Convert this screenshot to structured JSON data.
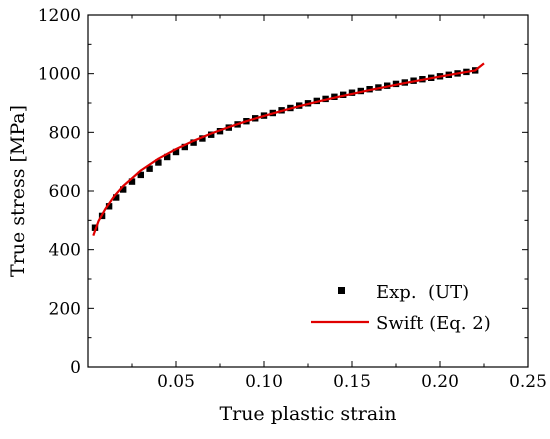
{
  "chart_data": {
    "type": "scatter",
    "title": "",
    "xlabel": "True plastic strain",
    "ylabel": "True stress [MPa]",
    "xlim": [
      0.0,
      0.25
    ],
    "ylim": [
      0,
      1200
    ],
    "x_ticks": [
      0.05,
      0.1,
      0.15,
      0.2,
      0.25
    ],
    "x_tick_labels": [
      "0.05",
      "0.10",
      "0.15",
      "0.20",
      "0.25"
    ],
    "y_ticks": [
      0,
      200,
      400,
      600,
      800,
      1000,
      1200
    ],
    "y_tick_labels": [
      "0",
      "200",
      "400",
      "600",
      "800",
      "1000",
      "1200"
    ],
    "grid": false,
    "legend_position": "bottom-right",
    "series": [
      {
        "name": "Exp.  (UT)",
        "kind": "markers",
        "color": "#000000",
        "x": [
          0.004,
          0.008,
          0.012,
          0.016,
          0.02,
          0.025,
          0.03,
          0.035,
          0.04,
          0.045,
          0.05,
          0.055,
          0.06,
          0.065,
          0.07,
          0.075,
          0.08,
          0.085,
          0.09,
          0.095,
          0.1,
          0.105,
          0.11,
          0.115,
          0.12,
          0.125,
          0.13,
          0.135,
          0.14,
          0.145,
          0.15,
          0.155,
          0.16,
          0.165,
          0.17,
          0.175,
          0.18,
          0.185,
          0.19,
          0.195,
          0.2,
          0.205,
          0.21,
          0.215,
          0.22
        ],
        "y": [
          475,
          515,
          548,
          578,
          605,
          632,
          655,
          676,
          697,
          716,
          733,
          750,
          765,
          779,
          792,
          804,
          816,
          827,
          838,
          848,
          857,
          866,
          875,
          883,
          891,
          899,
          907,
          914,
          921,
          928,
          935,
          941,
          947,
          953,
          959,
          965,
          970,
          976,
          981,
          986,
          991,
          996,
          1001,
          1006,
          1011
        ]
      },
      {
        "name": "Swift (Eq. 2)",
        "kind": "line",
        "color": "#e00000",
        "x": [
          0.003,
          0.006,
          0.01,
          0.015,
          0.02,
          0.03,
          0.04,
          0.05,
          0.06,
          0.07,
          0.08,
          0.09,
          0.1,
          0.11,
          0.12,
          0.13,
          0.14,
          0.15,
          0.16,
          0.17,
          0.18,
          0.19,
          0.2,
          0.21,
          0.22,
          0.225
        ],
        "y": [
          448,
          498,
          540,
          583,
          617,
          670,
          710,
          743,
          771,
          796,
          818,
          838,
          856,
          873,
          889,
          904,
          918,
          931,
          944,
          956,
          968,
          979,
          990,
          1001,
          1011,
          1035
        ]
      }
    ]
  }
}
